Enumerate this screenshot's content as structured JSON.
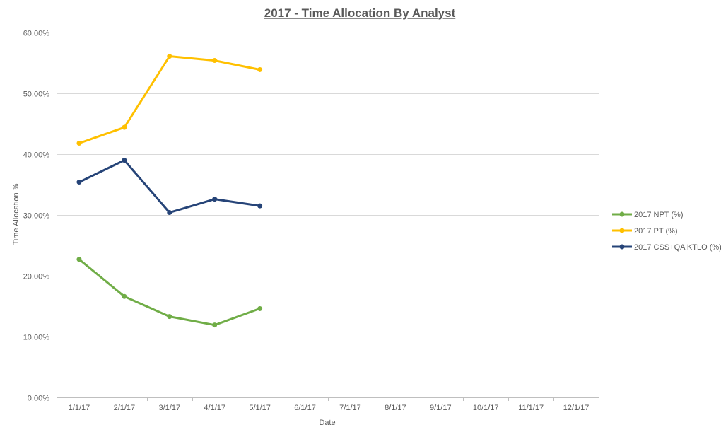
{
  "chart_data": {
    "type": "line",
    "title": "2017 - Time Allocation By Analyst",
    "xlabel": "Date",
    "ylabel": "Time Allocation %",
    "categories": [
      "1/1/17",
      "2/1/17",
      "3/1/17",
      "4/1/17",
      "5/1/17",
      "6/1/17",
      "7/1/17",
      "8/1/17",
      "9/1/17",
      "10/1/17",
      "11/1/17",
      "12/1/17"
    ],
    "ylim": [
      0,
      60
    ],
    "yticks": [
      "0.00%",
      "10.00%",
      "20.00%",
      "30.00%",
      "40.00%",
      "50.00%",
      "60.00%"
    ],
    "grid": true,
    "legend_position": "right",
    "series": [
      {
        "name": "2017 NPT (%)",
        "color": "#70ad47",
        "values": [
          22.7,
          16.6,
          13.3,
          11.9,
          14.6,
          null,
          null,
          null,
          null,
          null,
          null,
          null
        ]
      },
      {
        "name": "2017 PT (%)",
        "color": "#ffc000",
        "values": [
          41.8,
          44.4,
          56.1,
          55.4,
          53.9,
          null,
          null,
          null,
          null,
          null,
          null,
          null
        ]
      },
      {
        "name": "2017 CSS+QA KTLO (%)",
        "color": "#264478",
        "values": [
          35.4,
          39.0,
          30.4,
          32.6,
          31.5,
          null,
          null,
          null,
          null,
          null,
          null,
          null
        ]
      }
    ]
  }
}
